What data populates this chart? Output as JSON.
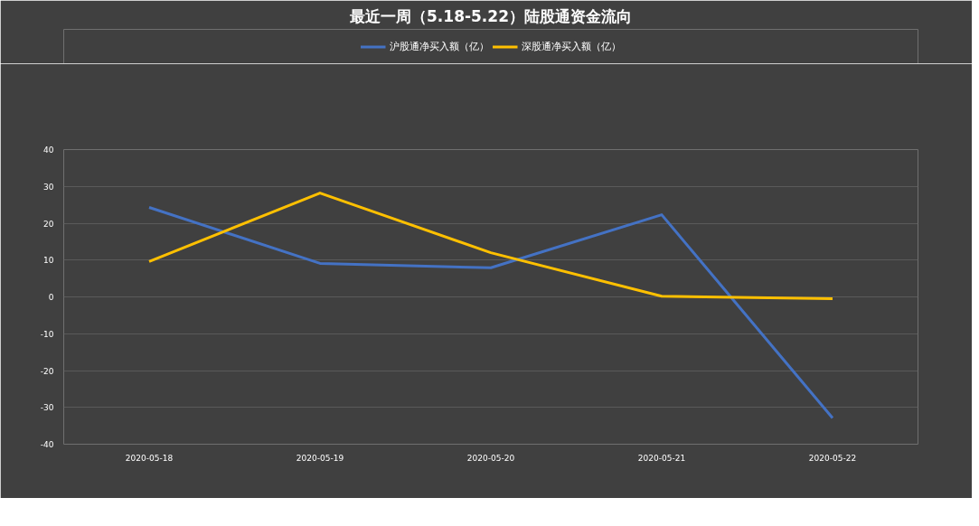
{
  "chart_data": {
    "type": "line",
    "title": "最近一周（5.18-5.22）陆股通资金流向",
    "categories": [
      "2020-05-18",
      "2020-05-19",
      "2020-05-20",
      "2020-05-21",
      "2020-05-22"
    ],
    "series": [
      {
        "name": "沪股通净买入额（亿）",
        "color": "#4472c4",
        "values": [
          24.3,
          9.1,
          7.9,
          22.3,
          -32.9
        ]
      },
      {
        "name": "深股通净买入额（亿）",
        "color": "#ffc000",
        "values": [
          9.6,
          28.2,
          12.0,
          0.2,
          -0.5
        ]
      }
    ],
    "ylim": [
      -40,
      40
    ],
    "yticks": [
      -40,
      -30,
      -20,
      -10,
      0,
      10,
      20,
      30,
      40
    ],
    "grid": "y",
    "legend": "top",
    "marker": "none",
    "line_style": "solid"
  }
}
